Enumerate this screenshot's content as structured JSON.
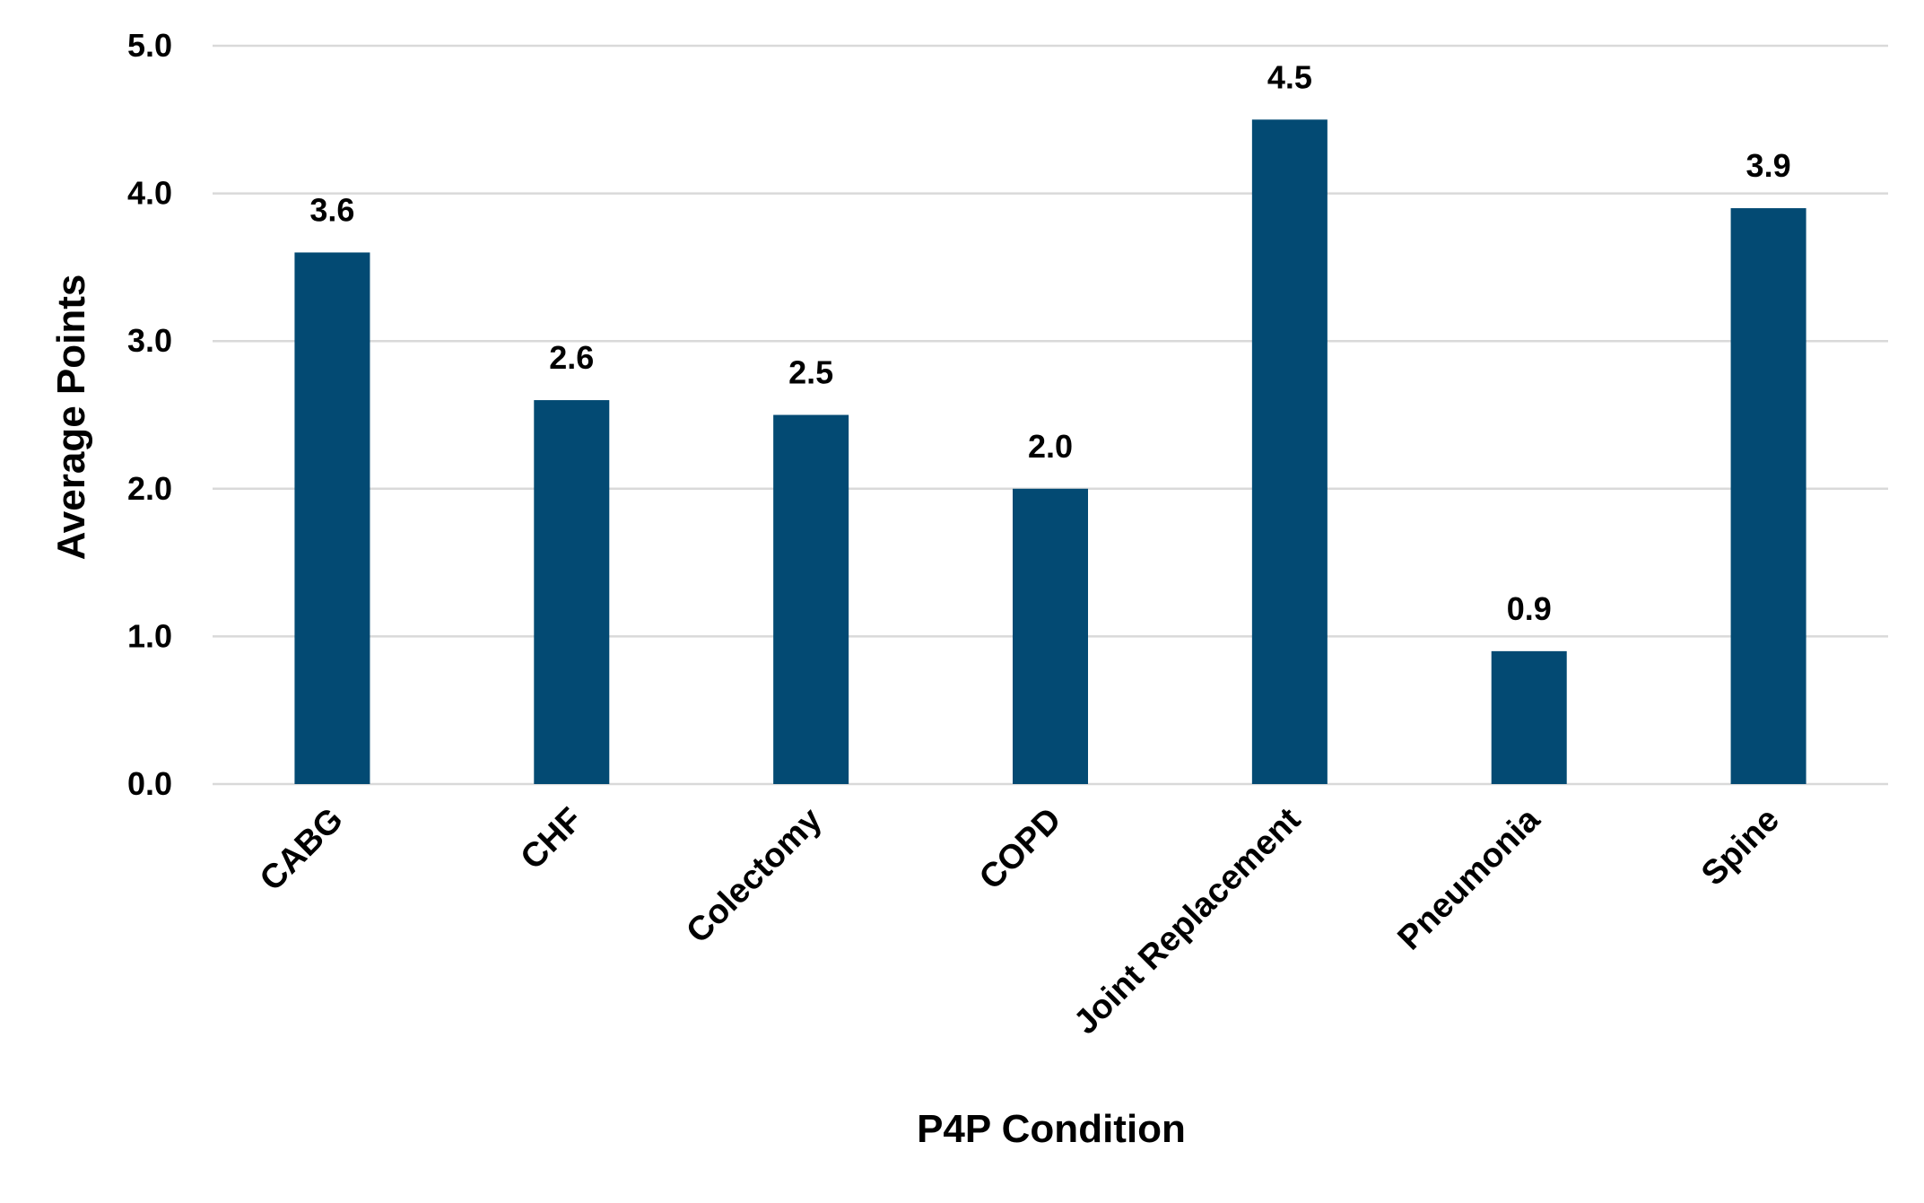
{
  "chart_data": {
    "type": "bar",
    "title": "",
    "xlabel": "P4P Condition",
    "ylabel": "Average Points",
    "categories": [
      "CABG",
      "CHF",
      "Colectomy",
      "COPD",
      "Joint Replacement",
      "Pneumonia",
      "Spine"
    ],
    "values": [
      3.6,
      2.6,
      2.5,
      2.0,
      4.5,
      0.9,
      3.9
    ],
    "data_labels": [
      "3.6",
      "2.6",
      "2.5",
      "2.0",
      "4.5",
      "0.9",
      "3.9"
    ],
    "ylim": [
      0,
      5
    ],
    "yticks": [
      0,
      1,
      2,
      3,
      4,
      5
    ],
    "ytick_labels": [
      "0.0",
      "1.0",
      "2.0",
      "3.0",
      "4.0",
      "5.0"
    ],
    "grid": true,
    "legend": "none",
    "colors": {
      "bar": "#034a73",
      "grid": "#d9d9d9"
    }
  }
}
